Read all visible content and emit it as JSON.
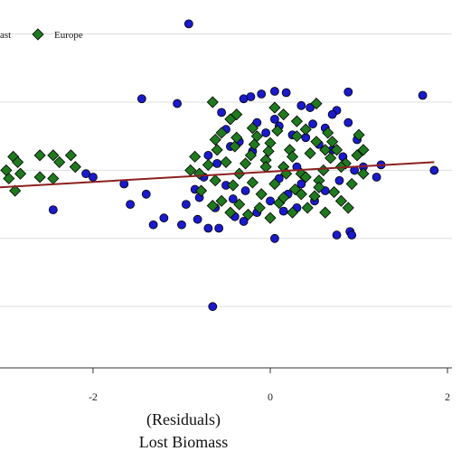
{
  "chart_data": {
    "type": "scatter",
    "xlabel_lines": [
      "(Residuals)",
      "Lost Biomass"
    ],
    "ylabel": "",
    "xlim": [
      -3.05,
      2.05
    ],
    "ylim": [
      -2.9,
      2.5
    ],
    "x_ticks": [
      -2,
      0,
      2
    ],
    "x_tick_labels": [
      "-2",
      "0",
      "2"
    ],
    "y_gridlines": [
      2,
      1,
      0,
      -1,
      -2
    ],
    "grid": "horizontal",
    "legend": {
      "placement": "top-left",
      "entries": [
        {
          "label": "ast",
          "marker": "circle",
          "color": "#1a1acc"
        },
        {
          "label": "Europe",
          "marker": "diamond",
          "color": "#1f7a1f"
        }
      ]
    },
    "fit_line": {
      "color": "#8b2020",
      "x": [
        -3.05,
        1.85
      ],
      "y": [
        -0.25,
        0.12
      ]
    },
    "series": [
      {
        "marker": "circle",
        "color": "#1a1acc",
        "points": [
          [
            -0.92,
            2.15
          ],
          [
            -1.45,
            1.05
          ],
          [
            -1.05,
            0.98
          ],
          [
            -0.55,
            0.85
          ],
          [
            0.35,
            0.95
          ],
          [
            0.45,
            0.92
          ],
          [
            1.72,
            1.1
          ],
          [
            0.88,
            1.15
          ],
          [
            0.75,
            0.88
          ],
          [
            -0.3,
            1.05
          ],
          [
            -0.22,
            1.08
          ],
          [
            -0.1,
            1.12
          ],
          [
            0.05,
            1.16
          ],
          [
            0.18,
            1.14
          ],
          [
            -2.08,
            -0.05
          ],
          [
            -2.0,
            -0.1
          ],
          [
            -1.65,
            -0.2
          ],
          [
            -1.4,
            -0.35
          ],
          [
            -1.58,
            -0.5
          ],
          [
            -1.2,
            -0.7
          ],
          [
            -1.32,
            -0.8
          ],
          [
            -2.45,
            -0.58
          ],
          [
            -1.0,
            -0.8
          ],
          [
            -0.65,
            -2.0
          ],
          [
            0.05,
            -1.0
          ],
          [
            0.75,
            -0.95
          ],
          [
            0.9,
            -0.9
          ],
          [
            0.92,
            -0.95
          ],
          [
            1.2,
            -0.1
          ],
          [
            1.05,
            0.05
          ],
          [
            1.25,
            0.08
          ],
          [
            1.85,
            0.0
          ],
          [
            -0.95,
            -0.5
          ],
          [
            -0.82,
            -0.72
          ],
          [
            -0.7,
            -0.85
          ],
          [
            -0.58,
            -0.85
          ],
          [
            -0.4,
            -0.68
          ],
          [
            0.15,
            -0.6
          ],
          [
            0.3,
            -0.55
          ],
          [
            0.5,
            -0.45
          ],
          [
            -0.5,
            0.6
          ],
          [
            -0.35,
            0.42
          ],
          [
            -0.2,
            0.28
          ],
          [
            -0.05,
            0.55
          ],
          [
            0.1,
            0.65
          ],
          [
            0.25,
            0.52
          ],
          [
            0.4,
            0.48
          ],
          [
            0.55,
            0.38
          ],
          [
            0.7,
            0.3
          ],
          [
            0.62,
            0.62
          ],
          [
            0.48,
            0.68
          ],
          [
            0.05,
            0.75
          ],
          [
            -0.15,
            0.7
          ],
          [
            -0.45,
            0.35
          ],
          [
            -0.6,
            0.1
          ],
          [
            -0.75,
            -0.1
          ],
          [
            -0.8,
            -0.4
          ],
          [
            -0.62,
            -0.55
          ],
          [
            -0.42,
            -0.42
          ],
          [
            -0.28,
            -0.3
          ],
          [
            0.0,
            -0.45
          ],
          [
            0.2,
            -0.35
          ],
          [
            0.35,
            -0.2
          ],
          [
            0.62,
            -0.3
          ],
          [
            0.78,
            -0.15
          ],
          [
            0.95,
            0.0
          ],
          [
            0.82,
            0.2
          ],
          [
            0.98,
            0.45
          ],
          [
            0.88,
            0.7
          ],
          [
            0.7,
            0.82
          ],
          [
            -0.3,
            -0.75
          ],
          [
            -0.15,
            -0.62
          ],
          [
            -0.5,
            -0.22
          ],
          [
            -0.85,
            -0.28
          ],
          [
            -0.7,
            0.22
          ],
          [
            0.3,
            0.05
          ],
          [
            0.1,
            -0.12
          ]
        ]
      },
      {
        "marker": "diamond",
        "color": "#1f7a1f",
        "points": [
          [
            -2.9,
            0.2
          ],
          [
            -2.85,
            0.12
          ],
          [
            -2.82,
            -0.05
          ],
          [
            -2.95,
            -0.12
          ],
          [
            -2.88,
            -0.3
          ],
          [
            -2.98,
            0.0
          ],
          [
            -2.6,
            0.22
          ],
          [
            -2.45,
            0.22
          ],
          [
            -2.38,
            0.12
          ],
          [
            -2.6,
            -0.1
          ],
          [
            -2.45,
            -0.12
          ],
          [
            -2.2,
            0.05
          ],
          [
            -2.25,
            0.22
          ],
          [
            -0.65,
            1.0
          ],
          [
            -0.45,
            0.75
          ],
          [
            0.05,
            0.92
          ],
          [
            0.3,
            0.72
          ],
          [
            0.52,
            0.98
          ],
          [
            -0.2,
            0.62
          ],
          [
            -0.55,
            0.55
          ],
          [
            0.65,
            0.55
          ],
          [
            0.7,
            0.42
          ],
          [
            1.0,
            0.52
          ],
          [
            -0.05,
            0.15
          ],
          [
            0.15,
            0.05
          ],
          [
            0.35,
            -0.05
          ],
          [
            0.55,
            -0.15
          ],
          [
            0.8,
            -0.45
          ],
          [
            0.62,
            -0.62
          ],
          [
            0.42,
            -0.55
          ],
          [
            0.1,
            -0.48
          ],
          [
            -0.12,
            -0.55
          ],
          [
            -0.35,
            -0.5
          ],
          [
            -0.55,
            -0.45
          ],
          [
            -0.78,
            -0.3
          ],
          [
            -0.9,
            0.0
          ],
          [
            -0.85,
            0.2
          ],
          [
            -0.6,
            0.3
          ],
          [
            -0.4,
            0.35
          ],
          [
            -0.18,
            0.38
          ],
          [
            0.0,
            0.4
          ],
          [
            0.22,
            0.3
          ],
          [
            0.45,
            0.25
          ],
          [
            0.68,
            0.18
          ],
          [
            0.85,
            0.1
          ],
          [
            1.05,
            -0.05
          ],
          [
            0.92,
            -0.2
          ],
          [
            0.72,
            -0.32
          ],
          [
            0.5,
            -0.38
          ],
          [
            0.28,
            -0.28
          ],
          [
            0.05,
            -0.2
          ],
          [
            -0.2,
            -0.18
          ],
          [
            -0.42,
            -0.22
          ],
          [
            -0.62,
            -0.15
          ],
          [
            -0.8,
            -0.05
          ],
          [
            -0.7,
            0.08
          ],
          [
            -0.5,
            0.12
          ],
          [
            -0.28,
            0.1
          ],
          [
            -0.05,
            0.05
          ],
          [
            0.18,
            -0.05
          ],
          [
            0.4,
            -0.1
          ],
          [
            0.6,
            0.0
          ],
          [
            0.8,
            0.05
          ],
          [
            0.98,
            0.22
          ],
          [
            0.75,
            0.3
          ],
          [
            0.52,
            0.42
          ],
          [
            0.3,
            0.5
          ],
          [
            0.08,
            0.58
          ],
          [
            -0.15,
            0.5
          ],
          [
            -0.38,
            0.48
          ],
          [
            -0.62,
            0.45
          ],
          [
            -0.35,
            -0.05
          ],
          [
            -0.1,
            -0.35
          ],
          [
            0.15,
            -0.4
          ],
          [
            0.35,
            -0.35
          ],
          [
            0.55,
            -0.25
          ],
          [
            -0.25,
            -0.65
          ],
          [
            0.0,
            -0.7
          ],
          [
            0.25,
            -0.62
          ],
          [
            -0.45,
            -0.62
          ],
          [
            -0.65,
            -0.52
          ],
          [
            0.88,
            -0.55
          ],
          [
            1.05,
            0.3
          ],
          [
            0.15,
            0.82
          ],
          [
            -0.38,
            0.82
          ],
          [
            0.4,
            0.6
          ],
          [
            0.25,
            0.2
          ],
          [
            -0.02,
            0.28
          ],
          [
            -0.22,
            0.22
          ],
          [
            0.62,
            0.3
          ]
        ]
      }
    ]
  }
}
